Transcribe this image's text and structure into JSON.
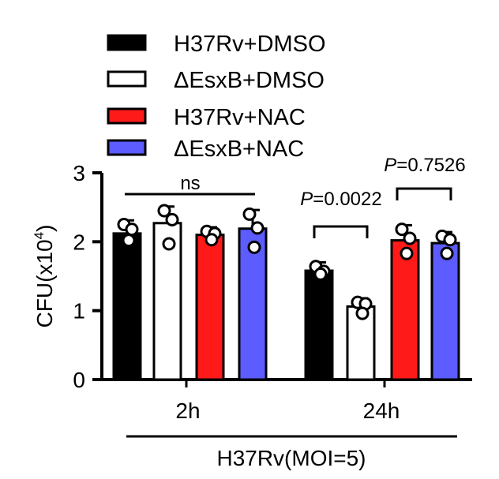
{
  "chart_data": {
    "type": "bar",
    "ylabel": "CFU(x10",
    "ylabel_sup": "4",
    "ylabel_close": ")",
    "xlabel": "H37Rv(MOI=5)",
    "ylim": [
      0,
      3
    ],
    "yticks": [
      "0",
      "1",
      "2",
      "3"
    ],
    "grid": false,
    "legend_position": "top",
    "categories": [
      "2h",
      "24h"
    ],
    "series": [
      {
        "name": "H37Rv+DMSO",
        "color": "#000000",
        "values": [
          2.12,
          1.58
        ],
        "points": [
          [
            2.25,
            2.18,
            2.02
          ],
          [
            1.64,
            1.57,
            1.53
          ]
        ]
      },
      {
        "name": "ΔEsxB+DMSO",
        "color": "#ffffff",
        "values": [
          2.27,
          1.06
        ],
        "points": [
          [
            2.45,
            2.32,
            1.97
          ],
          [
            1.12,
            1.1,
            0.96
          ]
        ]
      },
      {
        "name": "H37Rv+NAC",
        "color": "#ff1a1a",
        "values": [
          2.1,
          2.02
        ],
        "points": [
          [
            2.15,
            2.12,
            2.03
          ],
          [
            2.18,
            2.05,
            1.83
          ]
        ]
      },
      {
        "name": "ΔEsxB+NAC",
        "color": "#5c5cff",
        "values": [
          2.19,
          1.98
        ],
        "points": [
          [
            2.4,
            2.2,
            1.92
          ],
          [
            2.08,
            2.03,
            1.83
          ]
        ]
      }
    ],
    "annotations": {
      "ns": "ns",
      "p1_italic": "P",
      "p1_value": "=0.0022",
      "p2_italic": "P",
      "p2_value": "=0.7526"
    }
  }
}
